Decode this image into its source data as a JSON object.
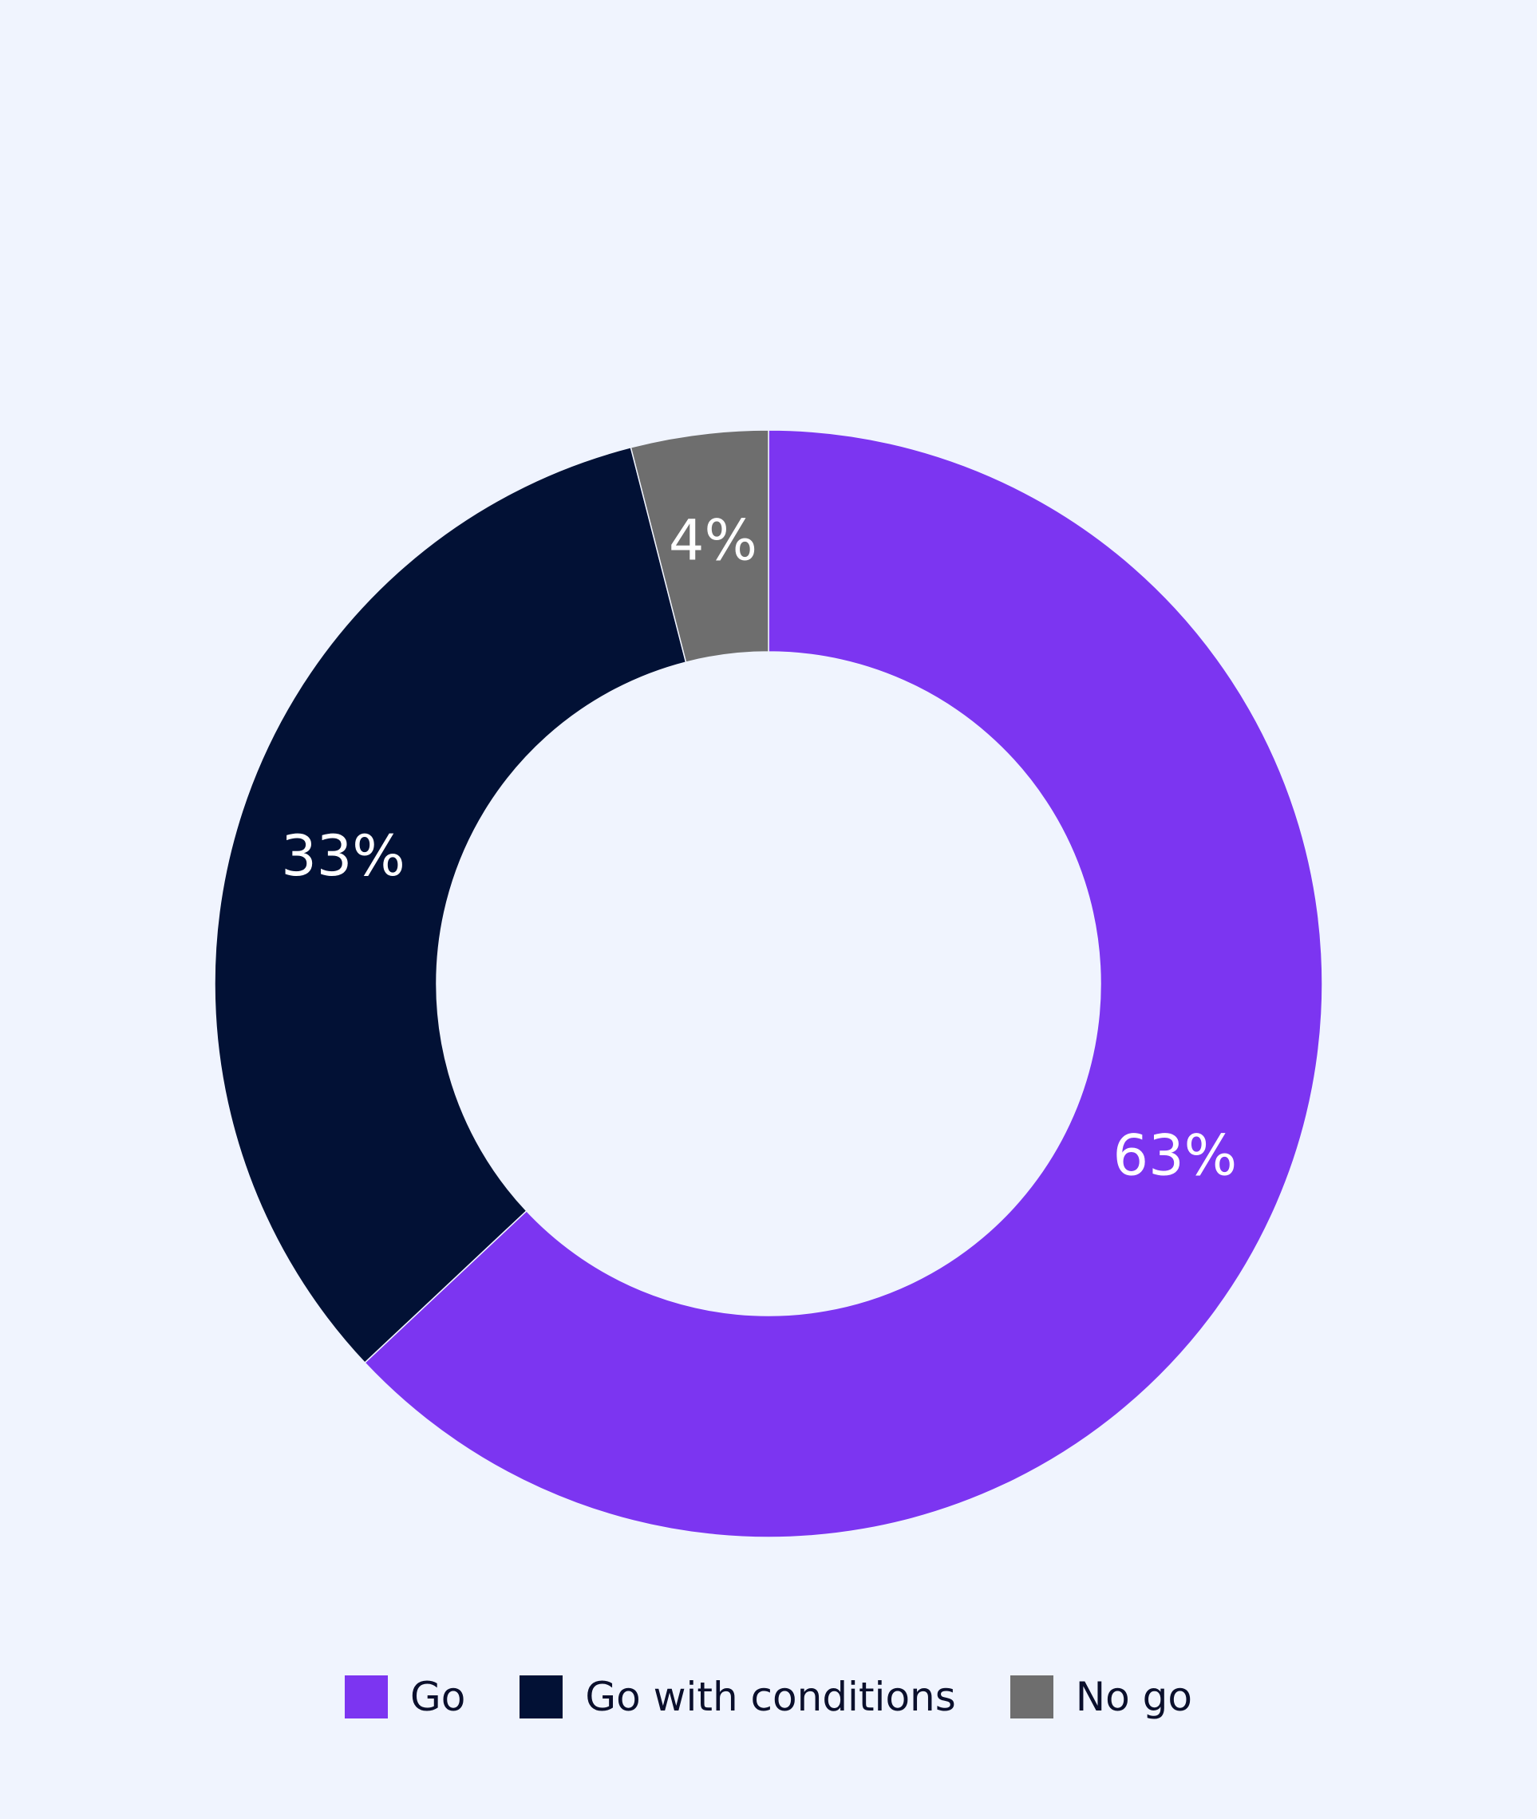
{
  "chart_data": {
    "type": "pie",
    "style": "donut",
    "categories": [
      "Go",
      "Go with conditions",
      "No go"
    ],
    "values": [
      63,
      33,
      4
    ],
    "labels": [
      "63%",
      "33%",
      "4%"
    ],
    "colors": [
      "#7c35f1",
      "#021135",
      "#6e6e6e"
    ],
    "legend_position": "bottom",
    "legend": [
      {
        "label": "Go",
        "color": "#7c35f1"
      },
      {
        "label": "Go with conditions",
        "color": "#021135"
      },
      {
        "label": "No go",
        "color": "#6e6e6e"
      }
    ]
  }
}
